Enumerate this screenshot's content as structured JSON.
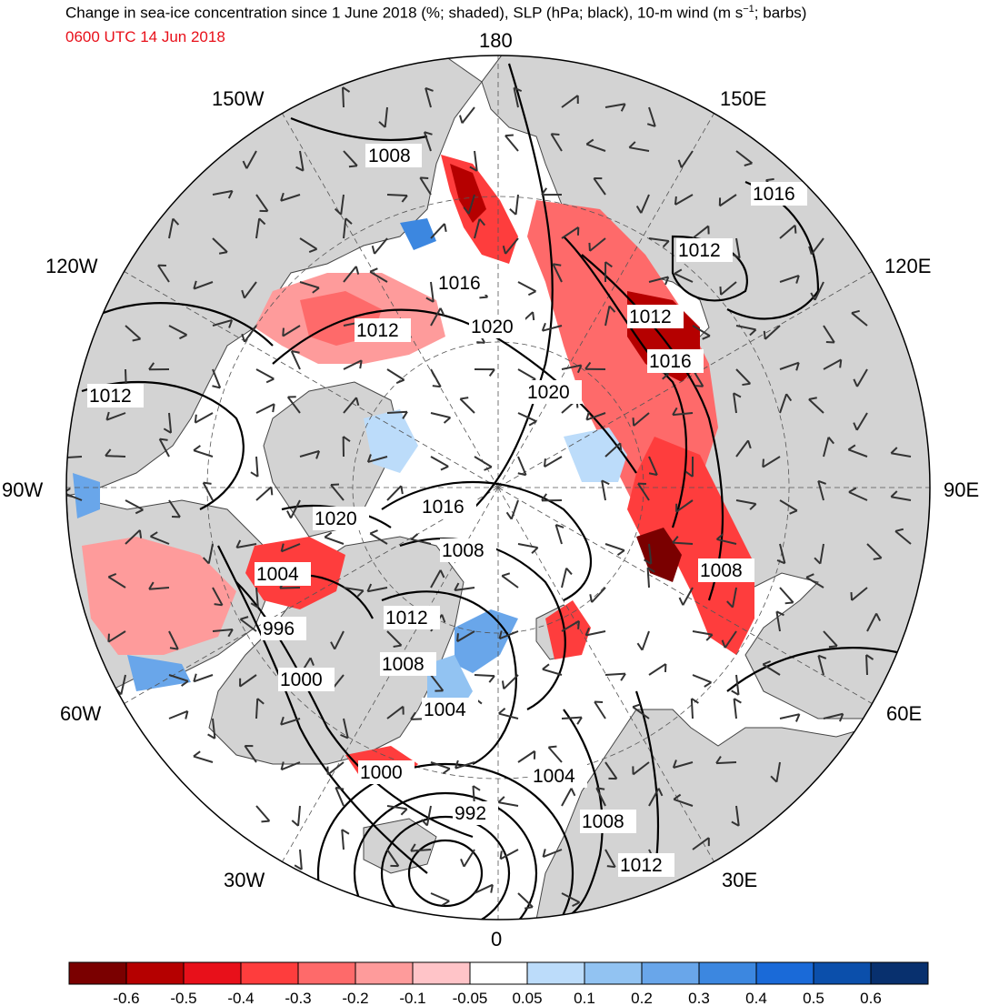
{
  "title": {
    "line1_prefix": "Change in sea-ice concentration since 1 June 2018 (%; shaded), SLP (hPa; black), 10-m wind (m s",
    "line1_sup": "−1",
    "line1_suffix": "; barbs)",
    "valid_time": "0600 UTC 14 Jun 2018",
    "valid_time_color": "#e8101a"
  },
  "map": {
    "projection": "north-polar-stereographic",
    "longitude_labels": [
      {
        "text": "180",
        "lon": 180
      },
      {
        "text": "150E",
        "lon": 150
      },
      {
        "text": "120E",
        "lon": 120
      },
      {
        "text": "90E",
        "lon": 90
      },
      {
        "text": "60E",
        "lon": 60
      },
      {
        "text": "30E",
        "lon": 30
      },
      {
        "text": "0",
        "lon": 0
      },
      {
        "text": "30W",
        "lon": -30
      },
      {
        "text": "60W",
        "lon": -60
      },
      {
        "text": "90W",
        "lon": -90
      },
      {
        "text": "120W",
        "lon": -120
      },
      {
        "text": "150W",
        "lon": -150
      }
    ],
    "land_color": "#d3d3d3",
    "ocean_color": "#ffffff",
    "slp_contour_labels": [
      "1008",
      "1016",
      "1016",
      "1012",
      "1020",
      "1012",
      "1012",
      "1016",
      "1020",
      "1012",
      "1016",
      "1020",
      "1008",
      "1004",
      "1008",
      "996",
      "1012",
      "1000",
      "1008",
      "1004",
      "1000",
      "1004",
      "992",
      "1008",
      "1012"
    ]
  },
  "colorbar": {
    "colors": [
      "#7a0000",
      "#b50000",
      "#e8101a",
      "#fe3d3d",
      "#fe6a6a",
      "#fe9b9b",
      "#ffc4c8",
      "#ffffff",
      "#bcdcfa",
      "#92c3f2",
      "#69a6ea",
      "#3c87e0",
      "#1a6ad8",
      "#0b4fab",
      "#08306e"
    ],
    "labels": [
      "-0.6",
      "-0.5",
      "-0.4",
      "-0.3",
      "-0.2",
      "-0.1",
      "-0.05",
      "0.05",
      "0.1",
      "0.2",
      "0.3",
      "0.4",
      "0.5",
      "0.6"
    ]
  }
}
